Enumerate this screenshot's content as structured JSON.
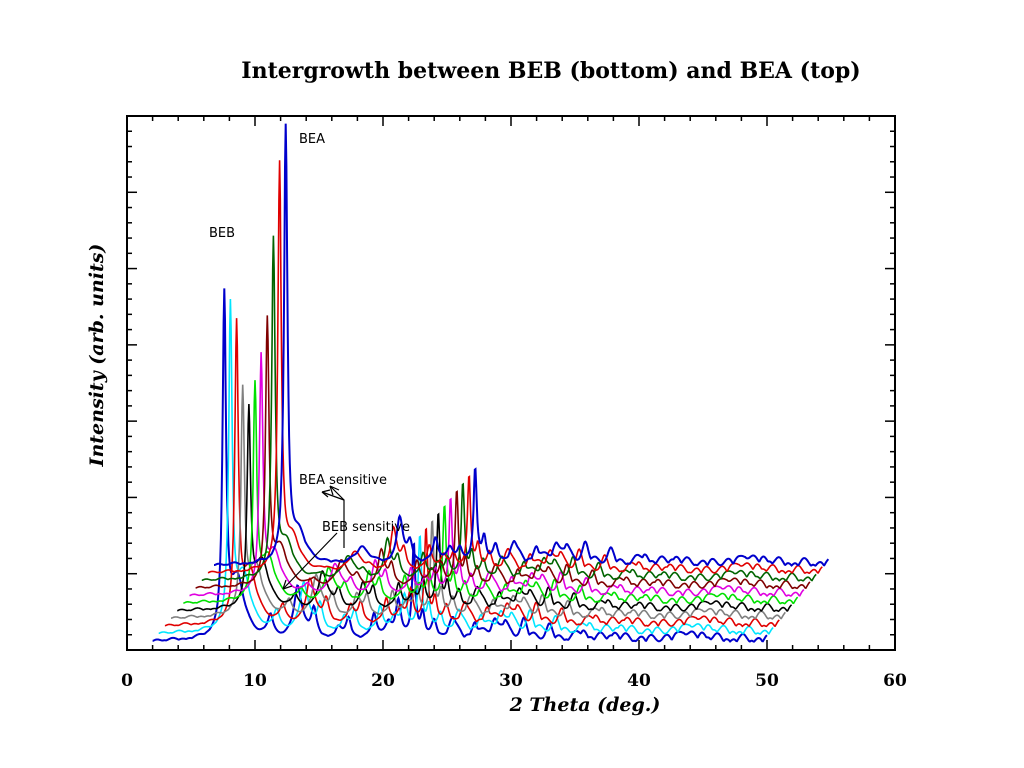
{
  "chart_data": {
    "type": "line",
    "title": "Intergrowth between BEB (bottom) and BEA (top)",
    "xlabel": "2 Theta (deg.)",
    "ylabel": "Intensity (arb. units)",
    "xlim": [
      0,
      60
    ],
    "x_ticks": [
      0,
      10,
      20,
      30,
      40,
      50,
      60
    ],
    "y_tick_labels": "none",
    "grid": false,
    "legend": "none",
    "waterfall": true,
    "pattern_range_2theta": [
      2,
      50
    ],
    "annotations": {
      "beb": "BEB",
      "bea": "BEA",
      "bea_sensitive": "BEA sensitive",
      "beb_sensitive": "BEB sensitive"
    },
    "series": [
      {
        "color": "#0000cc",
        "bea_fraction": 0.0,
        "peak1_height": 0.77
      },
      {
        "color": "#00e5ff",
        "bea_fraction": 0.1,
        "peak1_height": 0.73
      },
      {
        "color": "#e00000",
        "bea_fraction": 0.2,
        "peak1_height": 0.67
      },
      {
        "color": "#808080",
        "bea_fraction": 0.3,
        "peak1_height": 0.5
      },
      {
        "color": "#000000",
        "bea_fraction": 0.4,
        "peak1_height": 0.44
      },
      {
        "color": "#00e000",
        "bea_fraction": 0.5,
        "peak1_height": 0.48
      },
      {
        "color": "#e000e0",
        "bea_fraction": 0.6,
        "peak1_height": 0.53
      },
      {
        "color": "#7f0000",
        "bea_fraction": 0.7,
        "peak1_height": 0.6
      },
      {
        "color": "#006400",
        "bea_fraction": 0.8,
        "peak1_height": 0.77
      },
      {
        "color": "#e00000",
        "bea_fraction": 0.9,
        "peak1_height": 0.93
      },
      {
        "color": "#0000cc",
        "bea_fraction": 1.0,
        "peak1_height": 1.0
      }
    ]
  }
}
